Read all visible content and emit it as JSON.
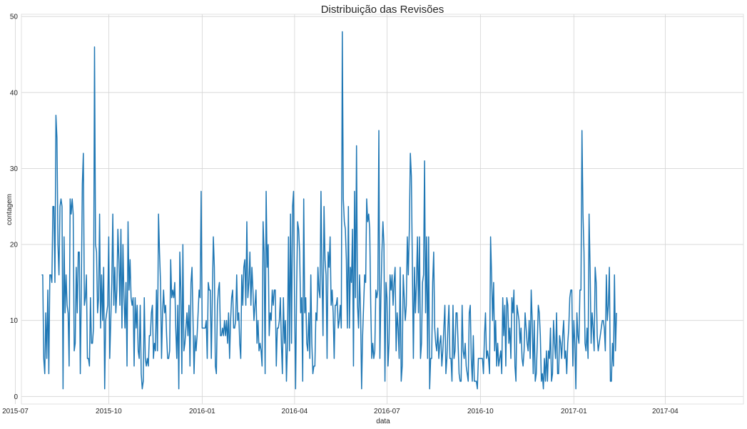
{
  "chart_data": {
    "type": "line",
    "title": "Distribuição das Revisões",
    "xlabel": "data",
    "ylabel": "contagem",
    "grid": true,
    "legend": "none",
    "xlim": [
      "2015-07-07",
      "2017-06-17"
    ],
    "ylim": [
      -1,
      50.3
    ],
    "x_ticks": [
      {
        "date": "2015-07-01",
        "label": "2015-07"
      },
      {
        "date": "2015-10-01",
        "label": "2015-10"
      },
      {
        "date": "2016-01-01",
        "label": "2016-01"
      },
      {
        "date": "2016-04-01",
        "label": "2016-04"
      },
      {
        "date": "2016-07-01",
        "label": "2016-07"
      },
      {
        "date": "2016-10-01",
        "label": "2016-10"
      },
      {
        "date": "2017-01-01",
        "label": "2017-01"
      },
      {
        "date": "2017-04-01",
        "label": "2017-04"
      }
    ],
    "y_ticks": [
      0,
      10,
      20,
      30,
      40,
      50
    ],
    "series": [
      {
        "color": "#1f77b4",
        "x_start": "2015-07-27",
        "x_step_days": 1,
        "values": [
          16,
          16,
          5,
          3,
          11,
          5,
          14,
          3,
          16,
          16,
          15,
          25,
          25,
          15,
          37,
          34,
          20,
          16,
          25,
          26,
          25,
          1,
          21,
          11,
          16,
          12,
          11,
          4,
          26,
          24,
          26,
          24,
          6,
          7,
          17,
          11,
          19,
          19,
          3,
          14,
          28,
          32,
          12,
          13,
          16,
          5,
          5,
          4,
          13,
          7,
          7,
          9,
          46,
          20,
          19,
          11,
          13,
          24,
          9,
          16,
          10,
          17,
          1,
          10,
          11,
          12,
          21,
          5,
          10,
          15,
          24,
          12,
          17,
          11,
          14,
          22,
          18,
          12,
          22,
          9,
          20,
          13,
          9,
          15,
          4,
          23,
          14,
          18,
          13,
          12,
          13,
          4,
          13,
          9,
          12,
          6,
          5,
          12,
          3,
          1,
          2,
          13,
          5,
          4,
          5,
          4,
          8,
          8,
          11,
          12,
          5,
          7,
          6,
          14,
          6,
          24,
          19,
          15,
          5,
          11,
          14,
          11,
          12,
          8,
          5,
          5,
          6,
          18,
          13,
          14,
          13,
          15,
          9,
          5,
          12,
          1,
          19,
          14,
          3,
          20,
          6,
          7,
          9,
          11,
          8,
          12,
          4,
          15,
          17,
          10,
          3,
          8,
          6,
          8,
          11,
          14,
          13,
          27,
          9,
          9,
          9,
          9,
          10,
          5,
          15,
          14,
          14,
          5,
          13,
          21,
          17,
          4,
          3,
          12,
          14,
          15,
          8,
          8,
          9,
          8,
          10,
          8,
          10,
          7,
          11,
          5,
          10,
          13,
          14,
          9,
          9,
          10,
          16,
          10,
          11,
          7,
          5,
          16,
          12,
          17,
          18,
          12,
          23,
          13,
          15,
          19,
          12,
          17,
          14,
          10,
          12,
          14,
          7,
          10,
          6,
          7,
          6,
          4,
          23,
          19,
          3,
          27,
          17,
          20,
          8,
          11,
          10,
          14,
          12,
          14,
          14,
          4,
          9,
          9,
          10,
          13,
          7,
          3,
          13,
          7,
          10,
          2,
          7,
          21,
          6,
          24,
          7,
          25,
          27,
          12,
          1,
          14,
          23,
          22,
          19,
          11,
          13,
          2,
          26,
          11,
          13,
          7,
          6,
          11,
          5,
          16,
          7,
          3,
          4,
          4,
          11,
          10,
          17,
          14,
          13,
          27,
          16,
          8,
          25,
          18,
          16,
          5,
          19,
          17,
          21,
          12,
          14,
          11,
          5,
          12,
          12,
          13,
          9,
          10,
          12,
          9,
          48,
          26,
          23,
          22,
          18,
          9,
          25,
          9,
          17,
          15,
          22,
          4,
          27,
          13,
          33,
          12,
          9,
          16,
          11,
          1,
          8,
          12,
          16,
          15,
          26,
          23,
          24,
          22,
          12,
          5,
          7,
          5,
          6,
          14,
          13,
          14,
          35,
          5,
          13,
          19,
          23,
          20,
          2,
          15,
          13,
          4,
          7,
          16,
          14,
          16,
          12,
          15,
          17,
          6,
          11,
          9,
          5,
          17,
          2,
          4,
          16,
          13,
          10,
          12,
          21,
          16,
          22,
          32,
          29,
          17,
          5,
          17,
          11,
          15,
          21,
          11,
          21,
          5,
          7,
          15,
          16,
          31,
          11,
          21,
          5,
          21,
          1,
          5,
          5,
          15,
          19,
          9,
          7,
          6,
          9,
          5,
          7,
          8,
          4,
          6,
          9,
          12,
          3,
          5,
          9,
          12,
          5,
          5,
          2,
          12,
          5,
          6,
          11,
          11,
          7,
          3,
          2,
          2,
          12,
          6,
          5,
          7,
          4,
          3,
          2,
          11,
          12,
          5,
          2,
          8,
          2,
          2,
          2,
          1,
          5,
          5,
          5,
          5,
          5,
          3,
          8,
          11,
          5,
          6,
          5,
          3,
          21,
          16,
          10,
          15,
          6,
          10,
          4,
          7,
          4,
          5,
          6,
          3,
          13,
          8,
          12,
          4,
          13,
          12,
          7,
          9,
          5,
          13,
          11,
          14,
          4,
          2,
          12,
          11,
          10,
          7,
          9,
          5,
          4,
          6,
          11,
          9,
          7,
          6,
          10,
          5,
          14,
          10,
          3,
          10,
          2,
          3,
          7,
          12,
          11,
          8,
          2,
          3,
          1,
          5,
          2,
          6,
          2,
          6,
          5,
          9,
          2,
          3,
          10,
          7,
          5,
          11,
          3,
          3,
          8,
          7,
          5,
          8,
          10,
          5,
          6,
          3,
          7,
          9,
          13,
          14,
          14,
          4,
          10,
          7,
          1,
          11,
          8,
          7,
          14,
          14,
          35,
          24,
          19,
          7,
          6,
          9,
          5,
          24,
          17,
          7,
          11,
          9,
          6,
          17,
          15,
          8,
          6,
          7,
          8,
          9,
          10,
          10,
          9,
          6,
          16,
          10,
          12,
          17,
          2,
          2,
          7,
          4,
          16,
          6,
          11
        ]
      }
    ]
  }
}
